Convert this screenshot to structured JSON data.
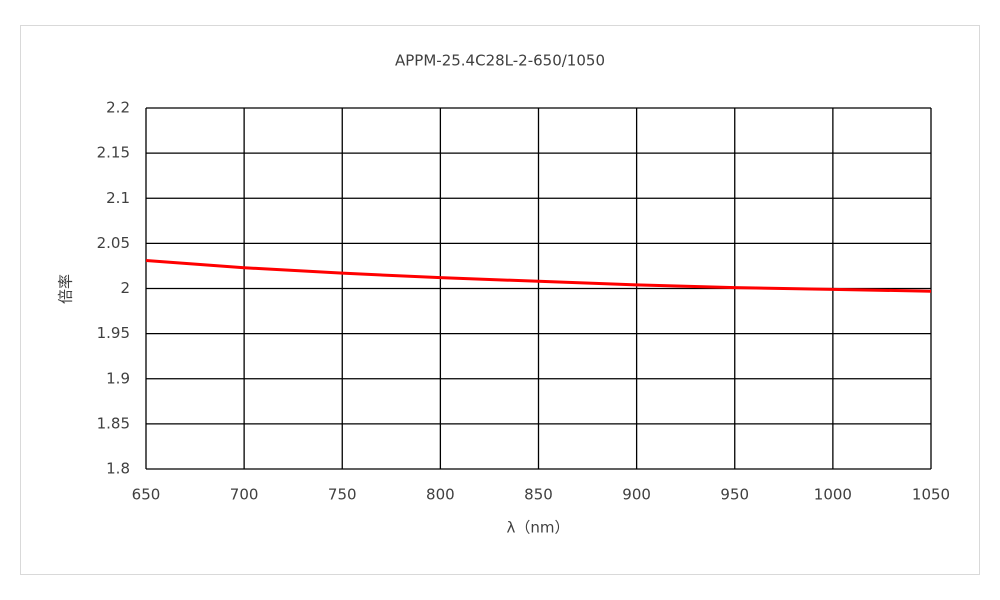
{
  "chart_data": {
    "type": "line",
    "title": "APPM-25.4C28L-2-650/1050",
    "x_label": "λ（nm）",
    "y_label": "倍率",
    "x": [
      650,
      700,
      750,
      800,
      850,
      900,
      950,
      1000,
      1050
    ],
    "series": [
      {
        "color": "#ff0000",
        "values": [
          2.031,
          2.023,
          2.017,
          2.012,
          2.008,
          2.004,
          2.001,
          1.999,
          1.997
        ]
      }
    ],
    "xlim": [
      650,
      1050
    ],
    "xticks": [
      650,
      700,
      750,
      800,
      850,
      900,
      950,
      1000,
      1050
    ],
    "ylim": [
      1.8,
      2.2
    ],
    "yticks": [
      1.8,
      1.85,
      1.9,
      1.95,
      2,
      2.05,
      2.1,
      2.15,
      2.2
    ],
    "grid": true
  }
}
